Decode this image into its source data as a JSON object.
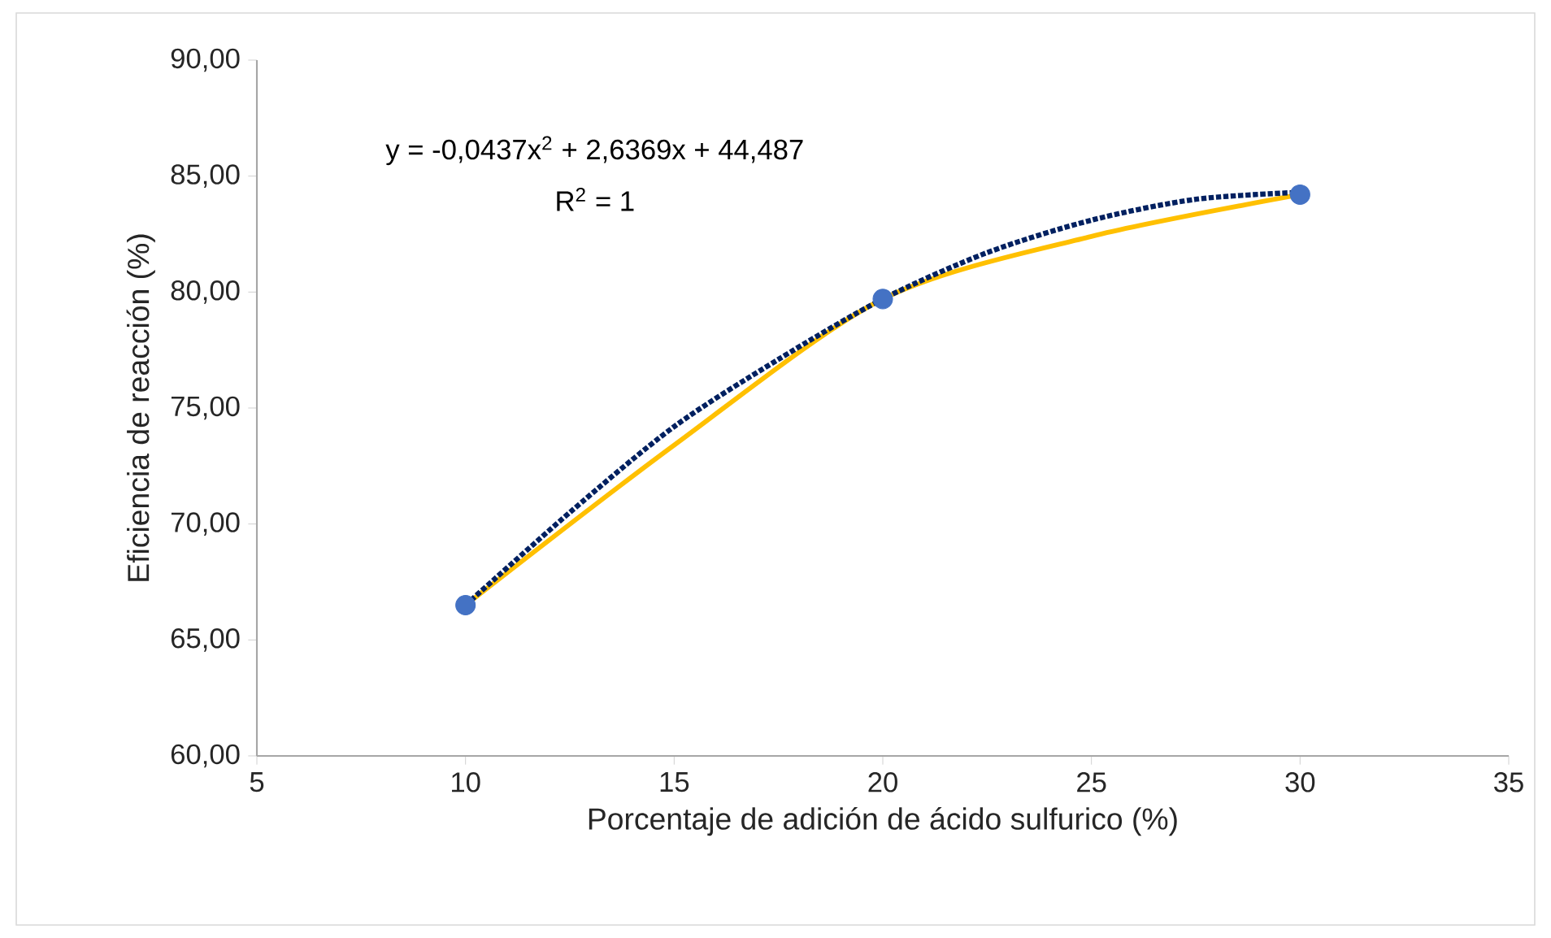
{
  "chart_data": {
    "type": "scatter",
    "xlabel": "Porcentaje de adición de ácido sulfurico (%)",
    "ylabel": "Eficiencia de reacción (%)",
    "x": [
      10,
      20,
      30
    ],
    "series": [
      {
        "type": "line",
        "color": "#ffc000",
        "line_style": "solid",
        "marker": "none",
        "x": [
          10,
          15,
          20,
          25,
          30
        ],
        "values": [
          66.5,
          73.4,
          79.7,
          82.4,
          84.2
        ]
      },
      {
        "type": "line",
        "color": "#002060",
        "line_style": "dotted",
        "marker": "none",
        "x": [
          10,
          12.5,
          15,
          17.5,
          20,
          22.5,
          25,
          27.5,
          30
        ],
        "values": [
          66.5,
          70.5,
          74.2,
          77.1,
          79.7,
          81.7,
          83.1,
          84.0,
          84.3
        ]
      },
      {
        "color": "#4472c4",
        "marker": "circle",
        "values": [
          66.5,
          79.7,
          84.2
        ]
      }
    ],
    "annotations": [
      "y = -0,0437x$^{2}$ + 2,6369x + 44,487",
      "R$^{2}$ = 1"
    ],
    "xlim": [
      5,
      35
    ],
    "xticks": [
      5,
      10,
      15,
      20,
      25,
      30,
      35
    ],
    "ylim": [
      60,
      90
    ],
    "yticks": [
      {
        "value": 60,
        "label": "60,00"
      },
      {
        "value": 65,
        "label": "65,00"
      },
      {
        "value": 70,
        "label": "70,00"
      },
      {
        "value": 75,
        "label": "75,00"
      },
      {
        "value": 80,
        "label": "80,00"
      },
      {
        "value": 85,
        "label": "85,00"
      },
      {
        "value": 90,
        "label": "90,00"
      }
    ],
    "grid": false
  }
}
